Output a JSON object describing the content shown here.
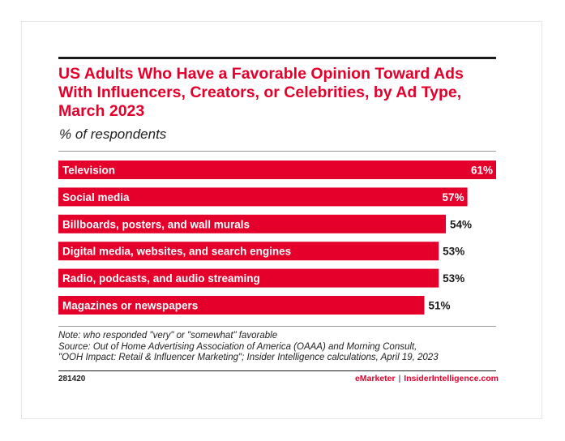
{
  "chart_data": {
    "type": "bar",
    "orientation": "horizontal",
    "title": "US Adults Who Have a Favorable Opinion Toward Ads With Influencers, Creators, or Celebrities, by Ad Type, March 2023",
    "subtitle": "% of respondents",
    "categories": [
      "Television",
      "Social media",
      "Billboards, posters, and wall murals",
      "Digital media, websites, and search engines",
      "Radio, podcasts, and audio streaming",
      "Magazines or newspapers"
    ],
    "values": [
      61,
      57,
      54,
      53,
      53,
      51
    ],
    "value_labels": [
      "61%",
      "57%",
      "54%",
      "53%",
      "53%",
      "51%"
    ],
    "xlim": [
      0,
      61
    ],
    "grid": false,
    "bar_color": "#e4002b"
  },
  "notes": {
    "note": "Note: who responded \"very\" or \"somewhat\" favorable",
    "source_line1": "Source: Out of Home Advertising Association of America (OAAA) and Morning Consult,",
    "source_line2": "\"OOH Impact: Retail & Influencer Marketing\"; Insider Intelligence calculations, April 19, 2023"
  },
  "footer": {
    "chart_id": "281420",
    "brand_emarketer": "eMarketer",
    "separator": "|",
    "brand_insider": "InsiderIntelligence.com"
  }
}
